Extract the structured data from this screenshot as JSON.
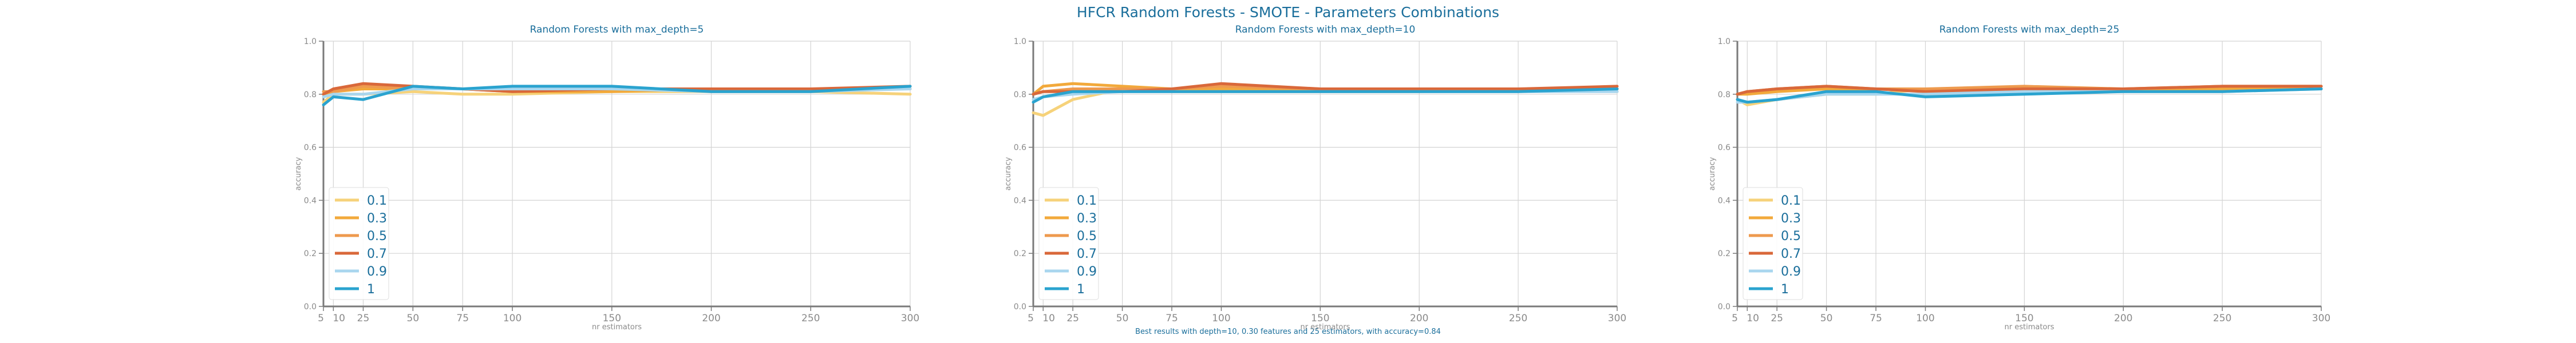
{
  "figure": {
    "suptitle": "HFCR Random Forests - SMOTE - Parameters Combinations",
    "footer": "Best results with depth=10, 0.30 features and 25 estimators, with accuracy=0.84"
  },
  "colors": {
    "title": "#1a6e9b",
    "axis": "#7a7a7a",
    "grid": "#d4d4d4",
    "tick_text": "#8a8a8a",
    "legend_text": "#1a6e9b",
    "series": [
      "#f6d27a",
      "#f2a93b",
      "#ee9a4e",
      "#d9683a",
      "#a9d6ee",
      "#2aa3cf"
    ]
  },
  "chart_data": [
    {
      "type": "line",
      "title": "Random Forests with max_depth=5",
      "xlabel": "nr estimators",
      "ylabel": "accuracy",
      "x": [
        5,
        10,
        25,
        50,
        75,
        100,
        150,
        200,
        250,
        300
      ],
      "xticks": [
        "5",
        "10",
        "25",
        "50",
        "75",
        "100",
        "150",
        "200",
        "250",
        "300"
      ],
      "xlim": [
        5,
        300
      ],
      "ylim": [
        0.0,
        1.0
      ],
      "yticks": [
        "0.0",
        "0.2",
        "0.4",
        "0.6",
        "0.8",
        "1.0"
      ],
      "grid": true,
      "legend_position": "lower-left",
      "series": [
        {
          "name": "0.1",
          "values": [
            0.77,
            0.8,
            0.8,
            0.81,
            0.8,
            0.8,
            0.81,
            0.81,
            0.81,
            0.8
          ]
        },
        {
          "name": "0.3",
          "values": [
            0.8,
            0.81,
            0.82,
            0.82,
            0.82,
            0.81,
            0.81,
            0.82,
            0.82,
            0.82
          ]
        },
        {
          "name": "0.5",
          "values": [
            0.81,
            0.81,
            0.83,
            0.82,
            0.82,
            0.82,
            0.82,
            0.82,
            0.82,
            0.82
          ]
        },
        {
          "name": "0.7",
          "values": [
            0.8,
            0.82,
            0.84,
            0.83,
            0.82,
            0.81,
            0.82,
            0.82,
            0.82,
            0.83
          ]
        },
        {
          "name": "0.9",
          "values": [
            0.79,
            0.8,
            0.8,
            0.82,
            0.82,
            0.82,
            0.82,
            0.81,
            0.81,
            0.82
          ]
        },
        {
          "name": "1",
          "values": [
            0.76,
            0.79,
            0.78,
            0.83,
            0.82,
            0.83,
            0.83,
            0.81,
            0.81,
            0.83
          ]
        }
      ]
    },
    {
      "type": "line",
      "title": "Random Forests with max_depth=10",
      "xlabel": "nr estimators",
      "ylabel": "accuracy",
      "x": [
        5,
        10,
        25,
        50,
        75,
        100,
        150,
        200,
        250,
        300
      ],
      "xticks": [
        "5",
        "10",
        "25",
        "50",
        "75",
        "100",
        "150",
        "200",
        "250",
        "300"
      ],
      "xlim": [
        5,
        300
      ],
      "ylim": [
        0.0,
        1.0
      ],
      "yticks": [
        "0.0",
        "0.2",
        "0.4",
        "0.6",
        "0.8",
        "1.0"
      ],
      "grid": true,
      "legend_position": "lower-left",
      "series": [
        {
          "name": "0.1",
          "values": [
            0.73,
            0.72,
            0.78,
            0.82,
            0.81,
            0.81,
            0.81,
            0.81,
            0.82,
            0.81
          ]
        },
        {
          "name": "0.3",
          "values": [
            0.8,
            0.83,
            0.84,
            0.83,
            0.82,
            0.82,
            0.82,
            0.82,
            0.82,
            0.82
          ]
        },
        {
          "name": "0.5",
          "values": [
            0.8,
            0.81,
            0.82,
            0.82,
            0.82,
            0.83,
            0.82,
            0.82,
            0.82,
            0.82
          ]
        },
        {
          "name": "0.7",
          "values": [
            0.8,
            0.81,
            0.81,
            0.81,
            0.82,
            0.84,
            0.82,
            0.82,
            0.82,
            0.83
          ]
        },
        {
          "name": "0.9",
          "values": [
            0.78,
            0.79,
            0.8,
            0.81,
            0.81,
            0.81,
            0.81,
            0.81,
            0.81,
            0.81
          ]
        },
        {
          "name": "1",
          "values": [
            0.77,
            0.79,
            0.81,
            0.81,
            0.81,
            0.81,
            0.81,
            0.81,
            0.81,
            0.82
          ]
        }
      ]
    },
    {
      "type": "line",
      "title": "Random Forests with max_depth=25",
      "xlabel": "nr estimators",
      "ylabel": "accuracy",
      "x": [
        5,
        10,
        25,
        50,
        75,
        100,
        150,
        200,
        250,
        300
      ],
      "xticks": [
        "5",
        "10",
        "25",
        "50",
        "75",
        "100",
        "150",
        "200",
        "250",
        "300"
      ],
      "xlim": [
        5,
        300
      ],
      "ylim": [
        0.0,
        1.0
      ],
      "yticks": [
        "0.0",
        "0.2",
        "0.4",
        "0.6",
        "0.8",
        "1.0"
      ],
      "grid": true,
      "legend_position": "lower-left",
      "series": [
        {
          "name": "0.1",
          "values": [
            0.78,
            0.76,
            0.78,
            0.8,
            0.8,
            0.82,
            0.82,
            0.82,
            0.82,
            0.82
          ]
        },
        {
          "name": "0.3",
          "values": [
            0.8,
            0.8,
            0.81,
            0.82,
            0.82,
            0.82,
            0.82,
            0.82,
            0.82,
            0.82
          ]
        },
        {
          "name": "0.5",
          "values": [
            0.8,
            0.81,
            0.82,
            0.83,
            0.82,
            0.82,
            0.83,
            0.82,
            0.83,
            0.83
          ]
        },
        {
          "name": "0.7",
          "values": [
            0.8,
            0.81,
            0.82,
            0.83,
            0.82,
            0.81,
            0.82,
            0.82,
            0.83,
            0.83
          ]
        },
        {
          "name": "0.9",
          "values": [
            0.77,
            0.77,
            0.78,
            0.8,
            0.8,
            0.8,
            0.81,
            0.81,
            0.81,
            0.82
          ]
        },
        {
          "name": "1",
          "values": [
            0.78,
            0.77,
            0.78,
            0.81,
            0.81,
            0.79,
            0.8,
            0.81,
            0.81,
            0.82
          ]
        }
      ]
    }
  ]
}
